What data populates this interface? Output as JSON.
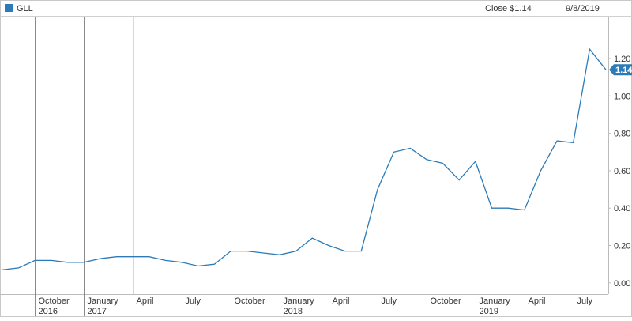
{
  "chart_data": {
    "type": "line",
    "legend_name": "GLL",
    "close_label": "Close $1.14",
    "date_label": "9/8/2019",
    "x": [
      "2016-08",
      "2016-09",
      "2016-10",
      "2016-11",
      "2016-12",
      "2017-01",
      "2017-02",
      "2017-03",
      "2017-04",
      "2017-05",
      "2017-06",
      "2017-07",
      "2017-08",
      "2017-09",
      "2017-10",
      "2017-11",
      "2017-12",
      "2018-01",
      "2018-02",
      "2018-03",
      "2018-04",
      "2018-05",
      "2018-06",
      "2018-07",
      "2018-08",
      "2018-09",
      "2018-10",
      "2018-11",
      "2018-12",
      "2019-01",
      "2019-02",
      "2019-03",
      "2019-04",
      "2019-05",
      "2019-06",
      "2019-07",
      "2019-08",
      "2019-09"
    ],
    "series": [
      {
        "name": "GLL",
        "color": "#2b7bb9",
        "values": [
          0.07,
          0.08,
          0.12,
          0.12,
          0.11,
          0.11,
          0.13,
          0.14,
          0.14,
          0.14,
          0.12,
          0.11,
          0.09,
          0.1,
          0.17,
          0.17,
          0.16,
          0.15,
          0.17,
          0.24,
          0.2,
          0.17,
          0.17,
          0.5,
          0.7,
          0.72,
          0.66,
          0.64,
          0.55,
          0.65,
          0.4,
          0.4,
          0.39,
          0.6,
          0.76,
          0.75,
          1.25,
          1.14
        ]
      }
    ],
    "xlim": [
      "2016-08",
      "2019-09"
    ],
    "xticks": [
      {
        "value": "2016-10",
        "label": "October 2016"
      },
      {
        "value": "2017-01",
        "label": "January 2017"
      },
      {
        "value": "2017-04",
        "label": "April"
      },
      {
        "value": "2017-07",
        "label": "July"
      },
      {
        "value": "2017-10",
        "label": "October"
      },
      {
        "value": "2018-01",
        "label": "January 2018"
      },
      {
        "value": "2018-04",
        "label": "April"
      },
      {
        "value": "2018-07",
        "label": "July"
      },
      {
        "value": "2018-10",
        "label": "October"
      },
      {
        "value": "2019-01",
        "label": "January 2019"
      },
      {
        "value": "2019-04",
        "label": "April"
      },
      {
        "value": "2019-07",
        "label": "July"
      }
    ],
    "ylim": [
      -0.06,
      1.42
    ],
    "yticks": [
      {
        "value": 0,
        "label": "0.00"
      },
      {
        "value": 0.2,
        "label": "0.20"
      },
      {
        "value": 0.4,
        "label": "0.40"
      },
      {
        "value": 0.6,
        "label": "0.60"
      },
      {
        "value": 0.8,
        "label": "0.80"
      },
      {
        "value": 1.0,
        "label": "1.00"
      },
      {
        "value": 1.2,
        "label": "1.20"
      }
    ]
  }
}
